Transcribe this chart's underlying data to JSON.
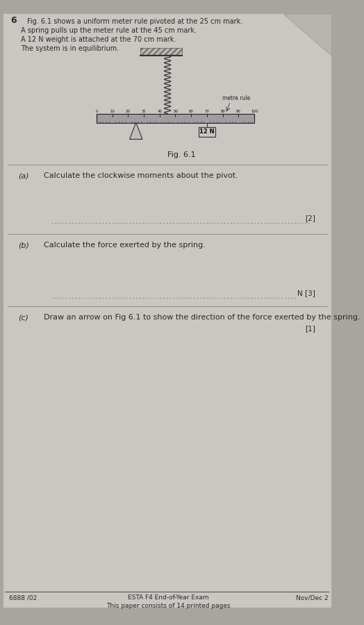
{
  "bg_color": "#b8b4af",
  "page_bg": "#d0ccc7",
  "title_number": "6",
  "intro_lines": [
    "Fig. 6.1 shows a uniform meter rule pivoted at the 25 cm mark.",
    "A spring pulls up the meter rule at the 45 cm mark.",
    "A 12 N weight is attached at the 70 cm mark.",
    "The system is in equilibrium."
  ],
  "fig_label": "Fig. 6.1",
  "metre_rule_label": "metre rule",
  "weight_label": "12 N",
  "tick_labels": [
    "0",
    "10",
    "20",
    "30",
    "40",
    "50",
    "60",
    "70",
    "80",
    "90",
    "100"
  ],
  "part_a_label": "(a)",
  "part_a_text": "Calculate the clockwise moments about the pivot.",
  "part_a_marks": "[2]",
  "part_b_label": "(b)",
  "part_b_text": "Calculate the force exerted by the spring.",
  "part_b_suffix": "N [3]",
  "part_c_label": "(c)",
  "part_c_text": "Draw an arrow on Fig 6.1 to show the direction of the force exerted by the spring.",
  "part_c_marks": "[1]",
  "footer_left": "6888 /02",
  "footer_center1": "ESTA F4 End-of-Year Exam",
  "footer_center2": "This paper consists of 14 printed pages",
  "footer_right": "Nov/Dec 2",
  "text_color": "#2a2a2a",
  "rule_color": "#444444",
  "line_color": "#888888"
}
